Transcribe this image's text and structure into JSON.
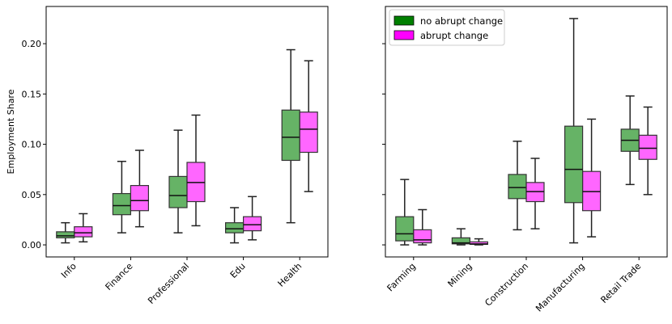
{
  "chart_data": {
    "type": "boxplot",
    "ylabel": "Employment Share",
    "ylim": [
      -0.012,
      0.237
    ],
    "yticks": [
      0.0,
      0.05,
      0.1,
      0.15,
      0.2
    ],
    "ytick_labels": [
      "0.00",
      "0.05",
      "0.10",
      "0.15",
      "0.20"
    ],
    "legend": {
      "placement": "top-left",
      "panel": "right",
      "entries": [
        {
          "label": "no abrupt change",
          "color": "#008000"
        },
        {
          "label": "abrupt change",
          "color": "#ff00ff"
        }
      ]
    },
    "series_styles": [
      {
        "name": "no abrupt change",
        "fill": "#008000",
        "alpha": 0.6
      },
      {
        "name": "abrupt change",
        "fill": "#ff00ff",
        "alpha": 0.6
      }
    ],
    "panels": [
      {
        "categories": [
          "Info",
          "Finance",
          "Professional",
          "Edu",
          "Health"
        ],
        "series": [
          {
            "name": "no abrupt change",
            "boxes": [
              {
                "whislo": 0.002,
                "q1": 0.007,
                "med": 0.009,
                "q3": 0.013,
                "whishi": 0.022
              },
              {
                "whislo": 0.012,
                "q1": 0.03,
                "med": 0.039,
                "q3": 0.051,
                "whishi": 0.083
              },
              {
                "whislo": 0.012,
                "q1": 0.037,
                "med": 0.049,
                "q3": 0.068,
                "whishi": 0.114
              },
              {
                "whislo": 0.002,
                "q1": 0.012,
                "med": 0.016,
                "q3": 0.022,
                "whishi": 0.037
              },
              {
                "whislo": 0.022,
                "q1": 0.084,
                "med": 0.107,
                "q3": 0.134,
                "whishi": 0.194
              }
            ]
          },
          {
            "name": "abrupt change",
            "boxes": [
              {
                "whislo": 0.003,
                "q1": 0.008,
                "med": 0.012,
                "q3": 0.018,
                "whishi": 0.031
              },
              {
                "whislo": 0.018,
                "q1": 0.034,
                "med": 0.044,
                "q3": 0.059,
                "whishi": 0.094
              },
              {
                "whislo": 0.019,
                "q1": 0.043,
                "med": 0.062,
                "q3": 0.082,
                "whishi": 0.129
              },
              {
                "whislo": 0.005,
                "q1": 0.014,
                "med": 0.02,
                "q3": 0.028,
                "whishi": 0.048
              },
              {
                "whislo": 0.053,
                "q1": 0.092,
                "med": 0.115,
                "q3": 0.132,
                "whishi": 0.183
              }
            ]
          }
        ]
      },
      {
        "categories": [
          "Farming",
          "Mining",
          "Construction",
          "Manufacturing",
          "Retail Trade"
        ],
        "series": [
          {
            "name": "no abrupt change",
            "boxes": [
              {
                "whislo": 0.0,
                "q1": 0.004,
                "med": 0.011,
                "q3": 0.028,
                "whishi": 0.065
              },
              {
                "whislo": 0.0,
                "q1": 0.001,
                "med": 0.002,
                "q3": 0.007,
                "whishi": 0.016
              },
              {
                "whislo": 0.015,
                "q1": 0.046,
                "med": 0.057,
                "q3": 0.07,
                "whishi": 0.103
              },
              {
                "whislo": 0.002,
                "q1": 0.042,
                "med": 0.075,
                "q3": 0.118,
                "whishi": 0.225
              },
              {
                "whislo": 0.06,
                "q1": 0.093,
                "med": 0.104,
                "q3": 0.115,
                "whishi": 0.148
              }
            ]
          },
          {
            "name": "abrupt change",
            "boxes": [
              {
                "whislo": 0.0,
                "q1": 0.002,
                "med": 0.005,
                "q3": 0.015,
                "whishi": 0.035
              },
              {
                "whislo": 0.0,
                "q1": 0.0005,
                "med": 0.001,
                "q3": 0.003,
                "whishi": 0.006
              },
              {
                "whislo": 0.016,
                "q1": 0.043,
                "med": 0.053,
                "q3": 0.062,
                "whishi": 0.086
              },
              {
                "whislo": 0.008,
                "q1": 0.034,
                "med": 0.053,
                "q3": 0.073,
                "whishi": 0.125
              },
              {
                "whislo": 0.05,
                "q1": 0.085,
                "med": 0.096,
                "q3": 0.109,
                "whishi": 0.137
              }
            ]
          }
        ]
      }
    ]
  }
}
